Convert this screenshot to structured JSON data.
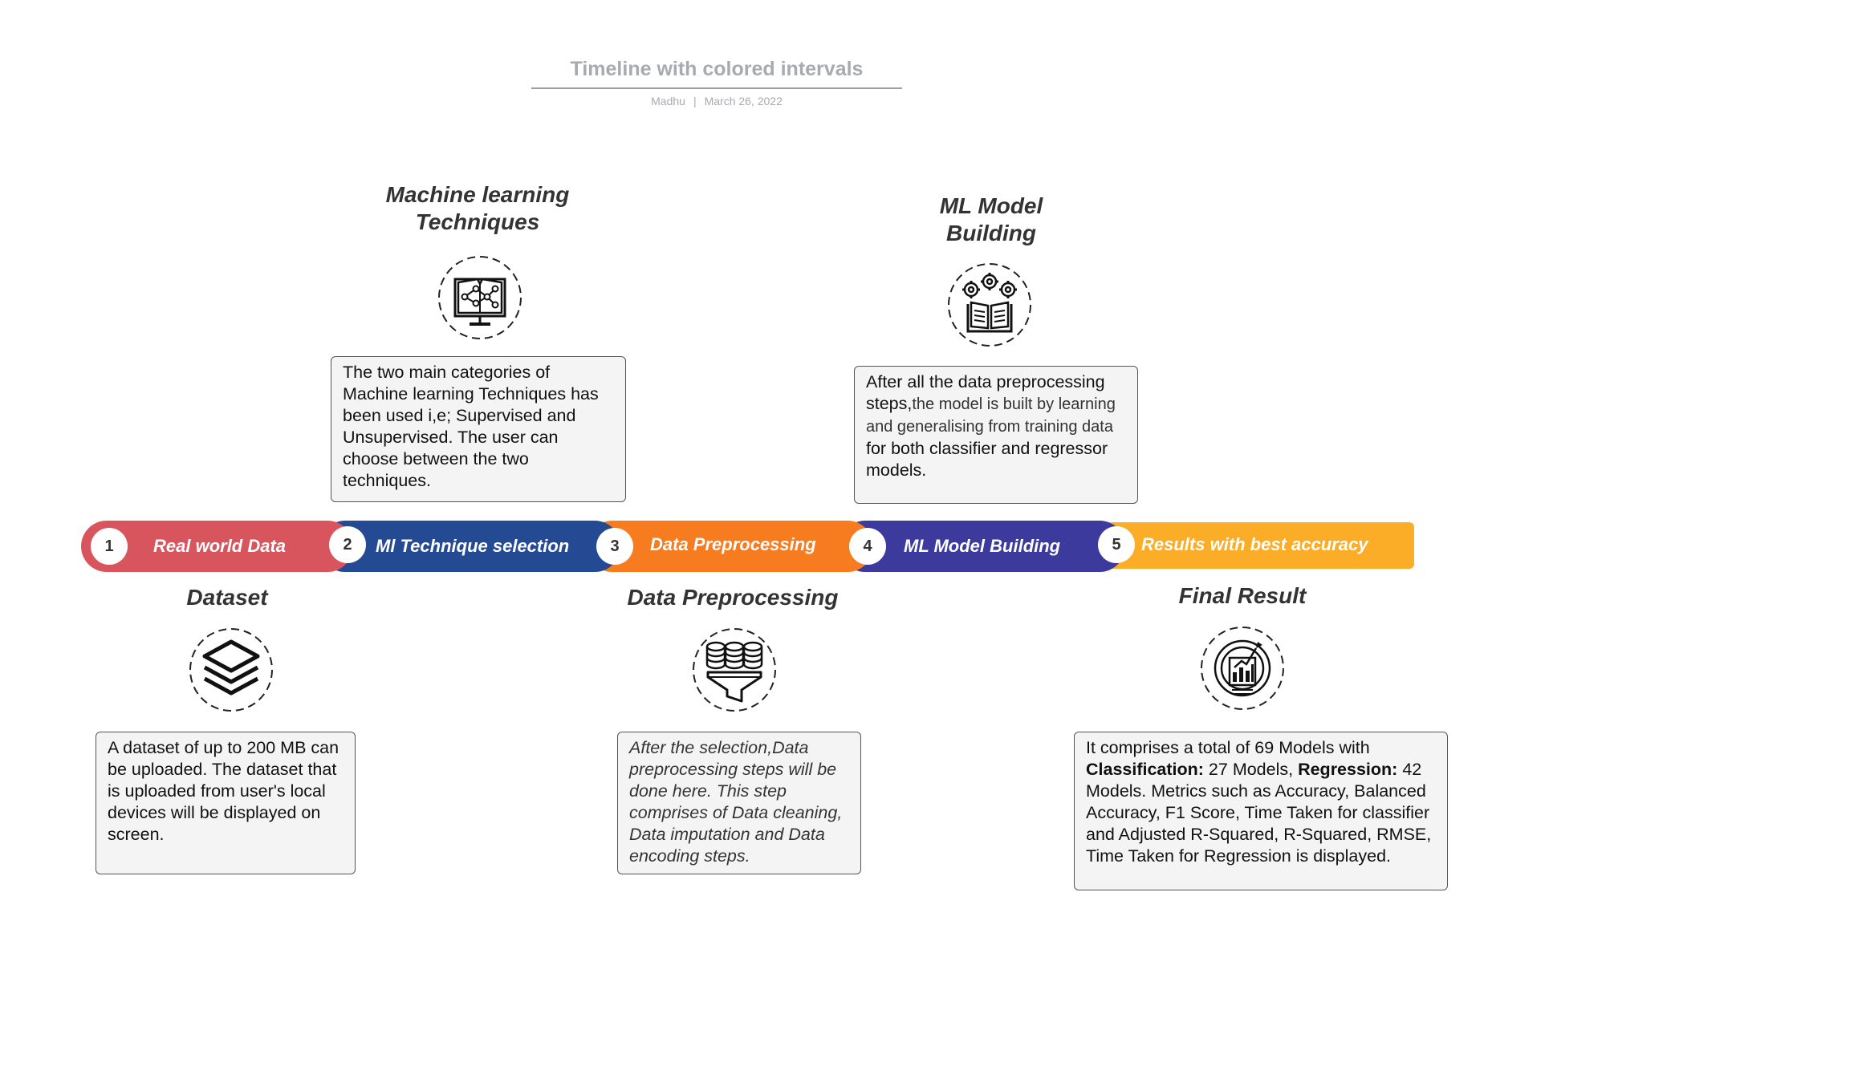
{
  "header": {
    "title": "Timeline with colored intervals",
    "author": "Madhu",
    "separator": "|",
    "date": "March 26, 2022"
  },
  "timeline": {
    "steps": [
      {
        "number": "1",
        "label": "Real world Data",
        "color": "#d9555d"
      },
      {
        "number": "2",
        "label": "Ml Technique selection",
        "color": "#234a92"
      },
      {
        "number": "3",
        "label": "Data Preprocessing",
        "color": "#f77b1f"
      },
      {
        "number": "4",
        "label": "ML Model Building",
        "color": "#3c3a9c"
      },
      {
        "number": "5",
        "label": "Results with best accuracy",
        "color": "#fbad27"
      }
    ]
  },
  "stages": {
    "ml_techniques": {
      "heading_line1": "Machine learning",
      "heading_line2": "Techniques",
      "icon": "neural-network-book-icon",
      "description": "The two main categories of Machine learning Techniques has been used i,e; Supervised and Unsupervised. The user can choose between the two techniques."
    },
    "model_building": {
      "heading_line1": "ML Model",
      "heading_line2": "Building",
      "icon": "gears-book-icon",
      "desc_part1": "After all the data preprocessing steps,",
      "desc_part2": "the model is built by learning and generalising from training data",
      "desc_part3": " for both classifier and regressor models."
    },
    "dataset": {
      "heading": "Dataset",
      "icon": "layers-icon",
      "description": "A dataset of up to 200 MB can be uploaded.   The dataset that is uploaded from user's local devices will be displayed on screen."
    },
    "preprocessing": {
      "heading": "Data Preprocessing",
      "icon": "database-funnel-icon",
      "description": "After the selection,Data preprocessing steps will be done here. This step comprises of Data cleaning, Data imputation and Data encoding steps."
    },
    "final_result": {
      "heading": "Final Result",
      "icon": "target-chart-icon",
      "desc_part1": " It comprises a total of 69 Models with ",
      "desc_bold1": "Classification:",
      "desc_part2": " 27 Models, ",
      "desc_bold2": "Regression:",
      "desc_part3": " 42  Models. Metrics such as Accuracy, Balanced Accuracy,  F1 Score, Time Taken for classifier and Adjusted R-Squared, R-Squared, RMSE, Time Taken for Regression is displayed."
    }
  }
}
